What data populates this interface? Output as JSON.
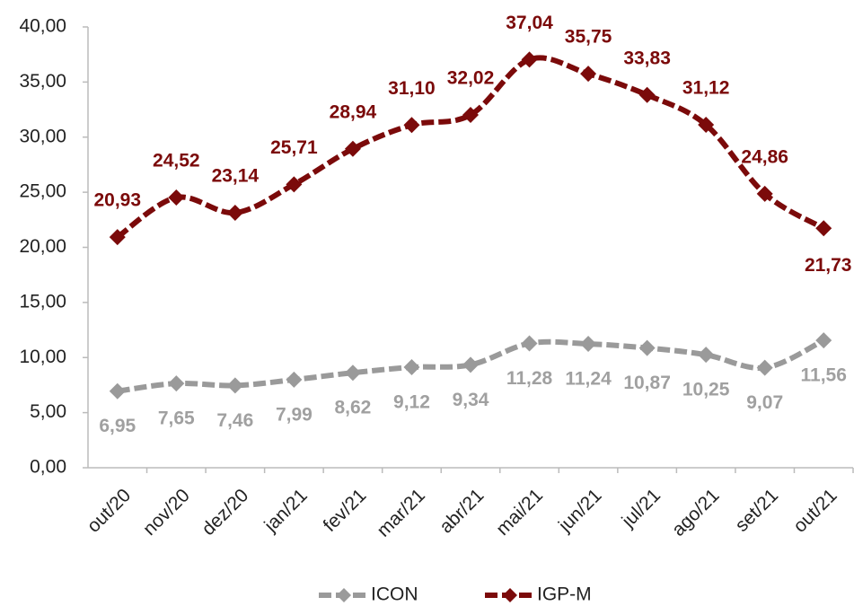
{
  "chart_data": {
    "type": "line",
    "categories": [
      "out/20",
      "nov/20",
      "dez/20",
      "jan/21",
      "fev/21",
      "mar/21",
      "abr/21",
      "mai/21",
      "jun/21",
      "jul/21",
      "ago/21",
      "set/21",
      "out/21"
    ],
    "series": [
      {
        "name": "ICON",
        "color": "#9a9a9a",
        "values": [
          6.95,
          7.65,
          7.46,
          7.99,
          8.62,
          9.12,
          9.34,
          11.28,
          11.24,
          10.87,
          10.25,
          9.07,
          11.56
        ],
        "value_labels": [
          "6,95",
          "7,65",
          "7,46",
          "7,99",
          "8,62",
          "9,12",
          "9,34",
          "11,28",
          "11,24",
          "10,87",
          "10,25",
          "9,07",
          "11,56"
        ]
      },
      {
        "name": "IGP-M",
        "color": "#7b0a0a",
        "values": [
          20.93,
          24.52,
          23.14,
          25.71,
          28.94,
          31.1,
          32.02,
          37.04,
          35.75,
          33.83,
          31.12,
          24.86,
          21.73
        ],
        "value_labels": [
          "20,93",
          "24,52",
          "23,14",
          "25,71",
          "28,94",
          "31,10",
          "32,02",
          "37,04",
          "35,75",
          "33,83",
          "31,12",
          "24,86",
          "21,73"
        ]
      }
    ],
    "ylim": [
      0,
      40
    ],
    "yticks": [
      {
        "value": 0,
        "label": "0,00"
      },
      {
        "value": 5,
        "label": "5,00"
      },
      {
        "value": 10,
        "label": "10,00"
      },
      {
        "value": 15,
        "label": "15,00"
      },
      {
        "value": 20,
        "label": "20,00"
      },
      {
        "value": 25,
        "label": "25,00"
      },
      {
        "value": 30,
        "label": "30,00"
      },
      {
        "value": 35,
        "label": "35,00"
      },
      {
        "value": 40,
        "label": "40,00"
      }
    ],
    "legend": "bottom",
    "grid": false
  }
}
